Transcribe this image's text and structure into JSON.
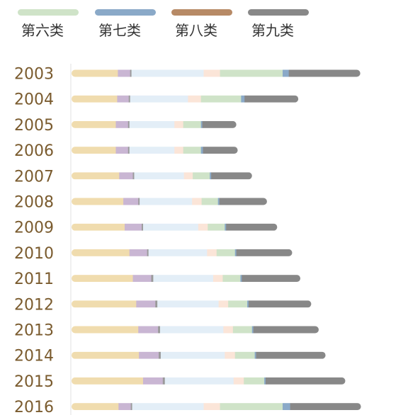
{
  "chart_data": {
    "type": "bar",
    "orientation": "horizontal",
    "stacked": true,
    "legend_position": "top",
    "grid": false,
    "legend": [
      {
        "label": "第六类",
        "color": "#cfe3c8"
      },
      {
        "label": "第七类",
        "color": "#8aa9c8"
      },
      {
        "label": "第八类",
        "color": "#b78a66"
      },
      {
        "label": "第九类",
        "color": "#888888"
      }
    ],
    "segment_colors": [
      "#f0dcae",
      "#c9b6d3",
      "#9a9a9a",
      "#e3eef7",
      "#fbe5d8",
      "#cfe3c8",
      "#8aa9c8",
      "#888888"
    ],
    "categories": [
      "2003",
      "2004",
      "2005",
      "2006",
      "2007",
      "2008",
      "2009",
      "2010",
      "2011",
      "2012",
      "2013",
      "2014",
      "2015",
      "2016"
    ],
    "rows": [
      [
        68,
        18,
        2,
        106,
        24,
        92,
        9,
        105
      ],
      [
        67,
        17,
        2,
        85,
        19,
        59,
        5,
        79
      ],
      [
        65,
        18,
        2,
        66,
        13,
        26,
        2,
        50
      ],
      [
        65,
        18,
        2,
        66,
        13,
        26,
        3,
        51
      ],
      [
        70,
        20,
        2,
        73,
        13,
        25,
        2,
        60
      ],
      [
        76,
        22,
        2,
        77,
        14,
        24,
        2,
        70
      ],
      [
        78,
        25,
        2,
        81,
        14,
        25,
        2,
        75
      ],
      [
        85,
        26,
        2,
        86,
        14,
        27,
        2,
        82
      ],
      [
        90,
        27,
        3,
        88,
        14,
        26,
        2,
        86
      ],
      [
        95,
        28,
        3,
        90,
        14,
        28,
        2,
        92
      ],
      [
        98,
        29,
        3,
        93,
        14,
        28,
        2,
        96
      ],
      [
        99,
        29,
        3,
        94,
        15,
        29,
        2,
        102
      ],
      [
        105,
        29,
        3,
        101,
        15,
        30,
        2,
        117
      ],
      [
        69,
        18,
        2,
        105,
        24,
        92,
        11,
        104
      ]
    ],
    "xlim": [
      0,
      440
    ]
  }
}
